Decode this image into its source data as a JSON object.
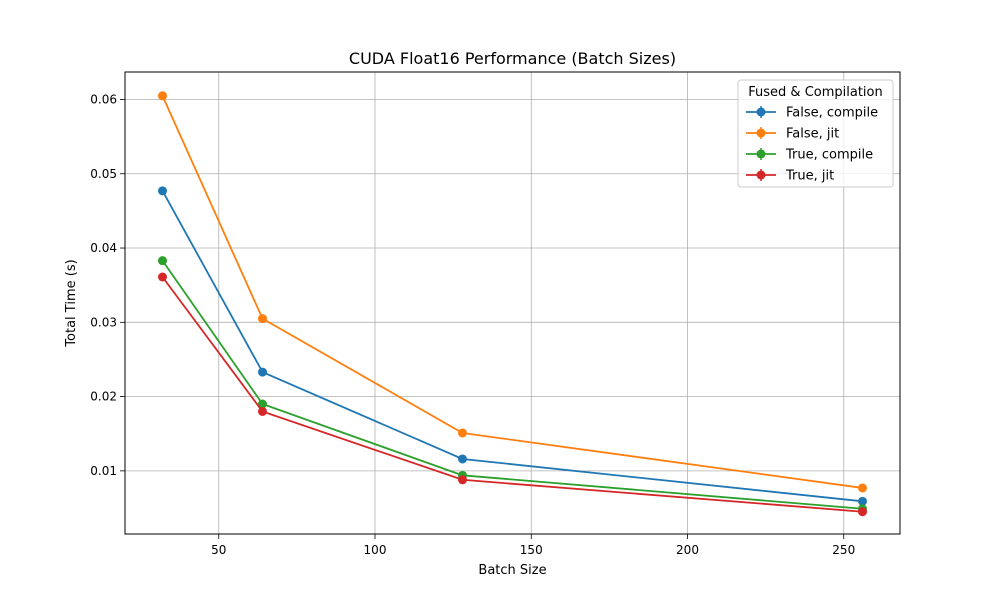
{
  "chart_data": {
    "type": "line",
    "title": "CUDA Float16 Performance (Batch Sizes)",
    "xlabel": "Batch Size",
    "ylabel": "Total Time (s)",
    "xlim": [
      20,
      268
    ],
    "ylim": [
      0.0015,
      0.0637
    ],
    "xticks": [
      50,
      100,
      150,
      200,
      250
    ],
    "yticks": [
      0.01,
      0.02,
      0.03,
      0.04,
      0.05,
      0.06
    ],
    "xtick_labels": [
      "50",
      "100",
      "150",
      "200",
      "250"
    ],
    "ytick_labels": [
      "0.01",
      "0.02",
      "0.03",
      "0.04",
      "0.05",
      "0.06"
    ],
    "grid": true,
    "legend": {
      "title": "Fused & Compilation",
      "placement": "top-right"
    },
    "x": [
      32,
      64,
      128,
      256
    ],
    "series": [
      {
        "name": "False, compile",
        "color": "#1f77b4",
        "values": [
          0.0477,
          0.0233,
          0.0116,
          0.0059
        ]
      },
      {
        "name": "False, jit",
        "color": "#ff7f0e",
        "values": [
          0.0605,
          0.0305,
          0.0151,
          0.0077
        ]
      },
      {
        "name": "True, compile",
        "color": "#2ca02c",
        "values": [
          0.0383,
          0.019,
          0.0094,
          0.0049
        ]
      },
      {
        "name": "True, jit",
        "color": "#d62728",
        "values": [
          0.0361,
          0.018,
          0.0088,
          0.0045
        ]
      }
    ]
  }
}
